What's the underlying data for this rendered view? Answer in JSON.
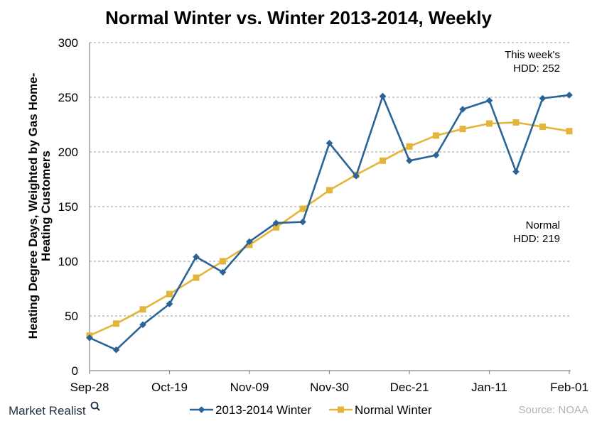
{
  "chart_data": {
    "type": "line",
    "title": "Normal Winter vs. Winter 2013-2014, Weekly",
    "ylabel_lines": [
      "Heating Degree Days, Weighted by Gas Home-",
      "Heating Customers"
    ],
    "xlabel": "",
    "x_tick_labels": [
      "Sep-28",
      "Oct-19",
      "Nov-09",
      "Nov-30",
      "Dec-21",
      "Jan-11",
      "Feb-01"
    ],
    "x_tick_indices": [
      0,
      3,
      6,
      9,
      12,
      15,
      18
    ],
    "ylim": [
      0,
      300
    ],
    "y_ticks": [
      0,
      50,
      100,
      150,
      200,
      250,
      300
    ],
    "grid": "horizontal dashed",
    "legend_position": "bottom-center",
    "series": [
      {
        "name": "2013-2014 Winter",
        "color": "#2a6496",
        "marker": "diamond",
        "values": [
          30,
          19,
          42,
          61,
          104,
          90,
          118,
          135,
          136,
          208,
          178,
          251,
          192,
          197,
          239,
          247,
          182,
          249,
          252
        ]
      },
      {
        "name": "Normal Winter",
        "color": "#e3b53a",
        "marker": "square",
        "values": [
          32,
          43,
          56,
          70,
          85,
          100,
          115,
          131,
          148,
          165,
          179,
          192,
          205,
          215,
          221,
          226,
          227,
          223,
          219
        ]
      }
    ],
    "annotations": [
      {
        "lines": [
          "This week's",
          "HDD: 252"
        ]
      },
      {
        "lines": [
          "Normal",
          "HDD: 219"
        ]
      }
    ]
  },
  "footer": {
    "brand": "Market Realist",
    "source": "Source: NOAA"
  },
  "colors": {
    "axis": "#888888",
    "grid": "#9a9a9a"
  }
}
